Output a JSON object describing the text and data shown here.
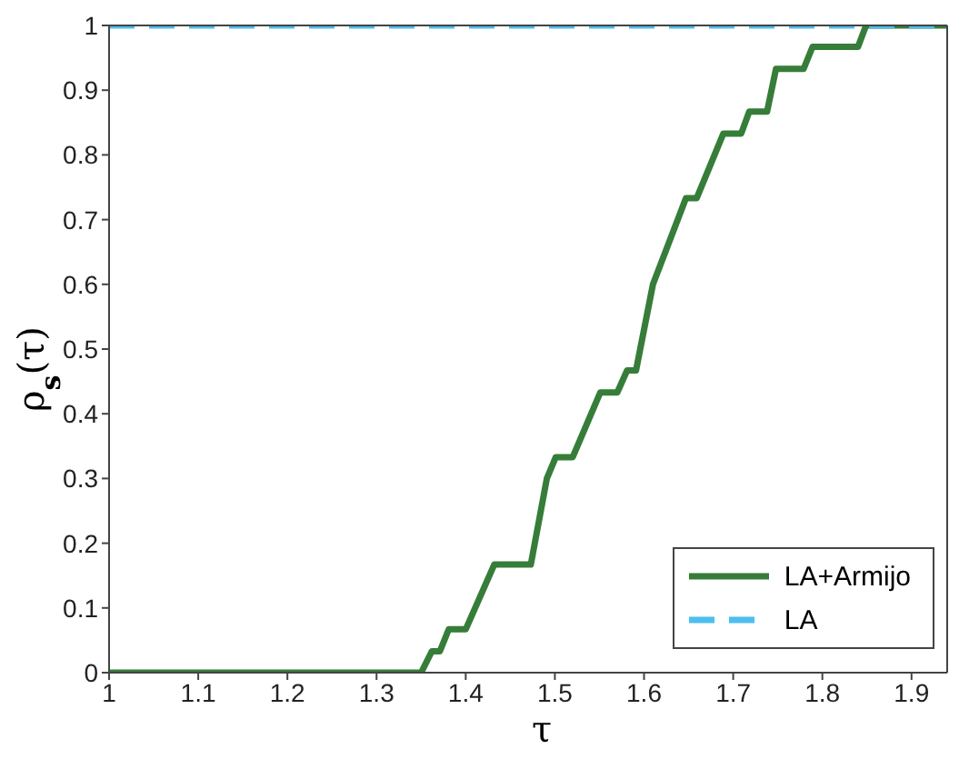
{
  "chart_data": {
    "type": "line",
    "xlabel": "τ",
    "ylabel": "ρ$_{s}$(τ)",
    "xlim": [
      1,
      1.94
    ],
    "xticks": [
      1,
      1.1,
      1.2,
      1.3,
      1.4,
      1.5,
      1.6,
      1.7,
      1.8,
      1.9
    ],
    "ylim": [
      0,
      1
    ],
    "yticks": [
      0,
      0.1,
      0.2,
      0.3,
      0.4,
      0.5,
      0.6,
      0.7,
      0.8,
      0.9,
      1
    ],
    "legend": "bottom right",
    "marker": "none",
    "series": [
      {
        "name": "LA+Armijo",
        "color": "#367d39",
        "line_style": "solid",
        "x": [
          1,
          1.35,
          1.362,
          1.371,
          1.381,
          1.4,
          1.432,
          1.473,
          1.491,
          1.501,
          1.52,
          1.551,
          1.57,
          1.581,
          1.591,
          1.61,
          1.647,
          1.659,
          1.689,
          1.709,
          1.718,
          1.738,
          1.748,
          1.779,
          1.789,
          1.84,
          1.849,
          1.94
        ],
        "values": [
          0,
          0,
          0.033,
          0.033,
          0.067,
          0.067,
          0.167,
          0.167,
          0.3,
          0.333,
          0.333,
          0.433,
          0.433,
          0.467,
          0.467,
          0.6,
          0.733,
          0.733,
          0.833,
          0.833,
          0.867,
          0.867,
          0.933,
          0.933,
          0.967,
          0.967,
          1,
          1
        ]
      },
      {
        "name": "LA",
        "color": "#4dbeee",
        "line_style": "dashed",
        "x": [
          1,
          1.94
        ],
        "values": [
          1,
          1
        ]
      }
    ]
  }
}
